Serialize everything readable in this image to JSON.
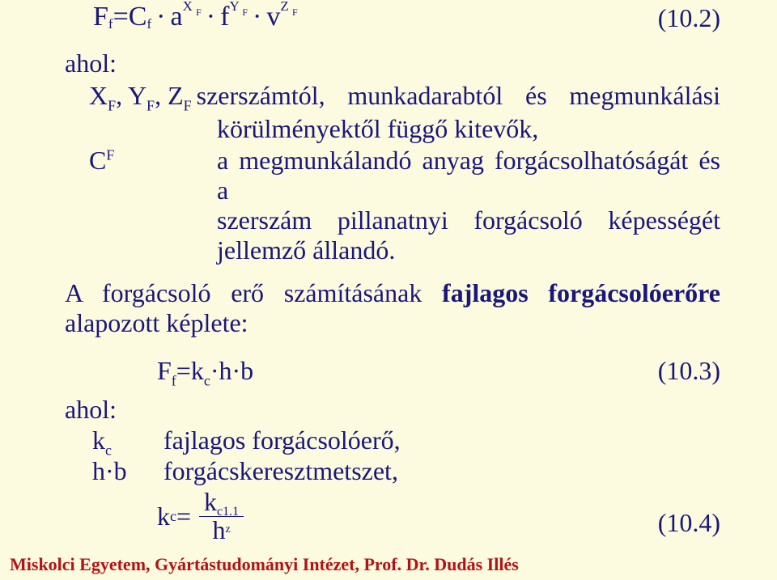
{
  "eq1": {
    "label": "(10.2)",
    "F": "F",
    "Ff_sub": "f",
    "eq": " = ",
    "C": "C",
    "Cf_sub": "f",
    "a": "a",
    "Xf": "X",
    "Xf_sub": "F",
    "f": "f",
    "Yf": "Y",
    "Yf_sub": "F",
    "v": "v",
    "Zf": "Z",
    "Zf_sub": "F",
    "dot": "·"
  },
  "ahol": "ahol:",
  "def1": {
    "syms_X": "X",
    "syms_Y": "Y",
    "syms_Z": "Z",
    "syms_sub": "F",
    "comma": ", ",
    "text_a": "szerszámtól,",
    "text_b": "munkadarabtól",
    "text_c": "és",
    "text_d": "megmunkálási",
    "text_line2": "körülményektől függő kitevők,"
  },
  "def2": {
    "sym": "C",
    "sym_sub": "F",
    "text_a": "a megmunkálandó anyag forgácsolhatóságát és a",
    "text_b": "szerszám",
    "text_c": "pillanatnyi",
    "text_d": "forgácsoló",
    "text_e": "képességét",
    "text_line2": "jellemző állandó."
  },
  "sentence": {
    "pre": "A forgácsoló erő számításának ",
    "bold": "fajlagos forgácsolóerőre",
    "post": " alapozott képlete:"
  },
  "eq2": {
    "text": "F",
    "sub1": "f",
    "mid": "=k",
    "sub2": "c",
    "rest": "·h·b",
    "label": "(10.3)"
  },
  "def3": {
    "sym": "k",
    "sym_sub": "c",
    "text": "fajlagos forgácsolóerő,"
  },
  "def4": {
    "sym": "h·b",
    "text": "forgácskeresztmetszet,"
  },
  "eq3": {
    "k": "k",
    "kc": "c",
    "eq": " = ",
    "num_k": "k",
    "num_sub": "c1.1",
    "den_h": "h",
    "den_sup": "z",
    "label": "(10.4)"
  },
  "footer": "Miskolci Egyetem, Gyártástudományi Intézet, Prof. Dr. Dudás Illés"
}
